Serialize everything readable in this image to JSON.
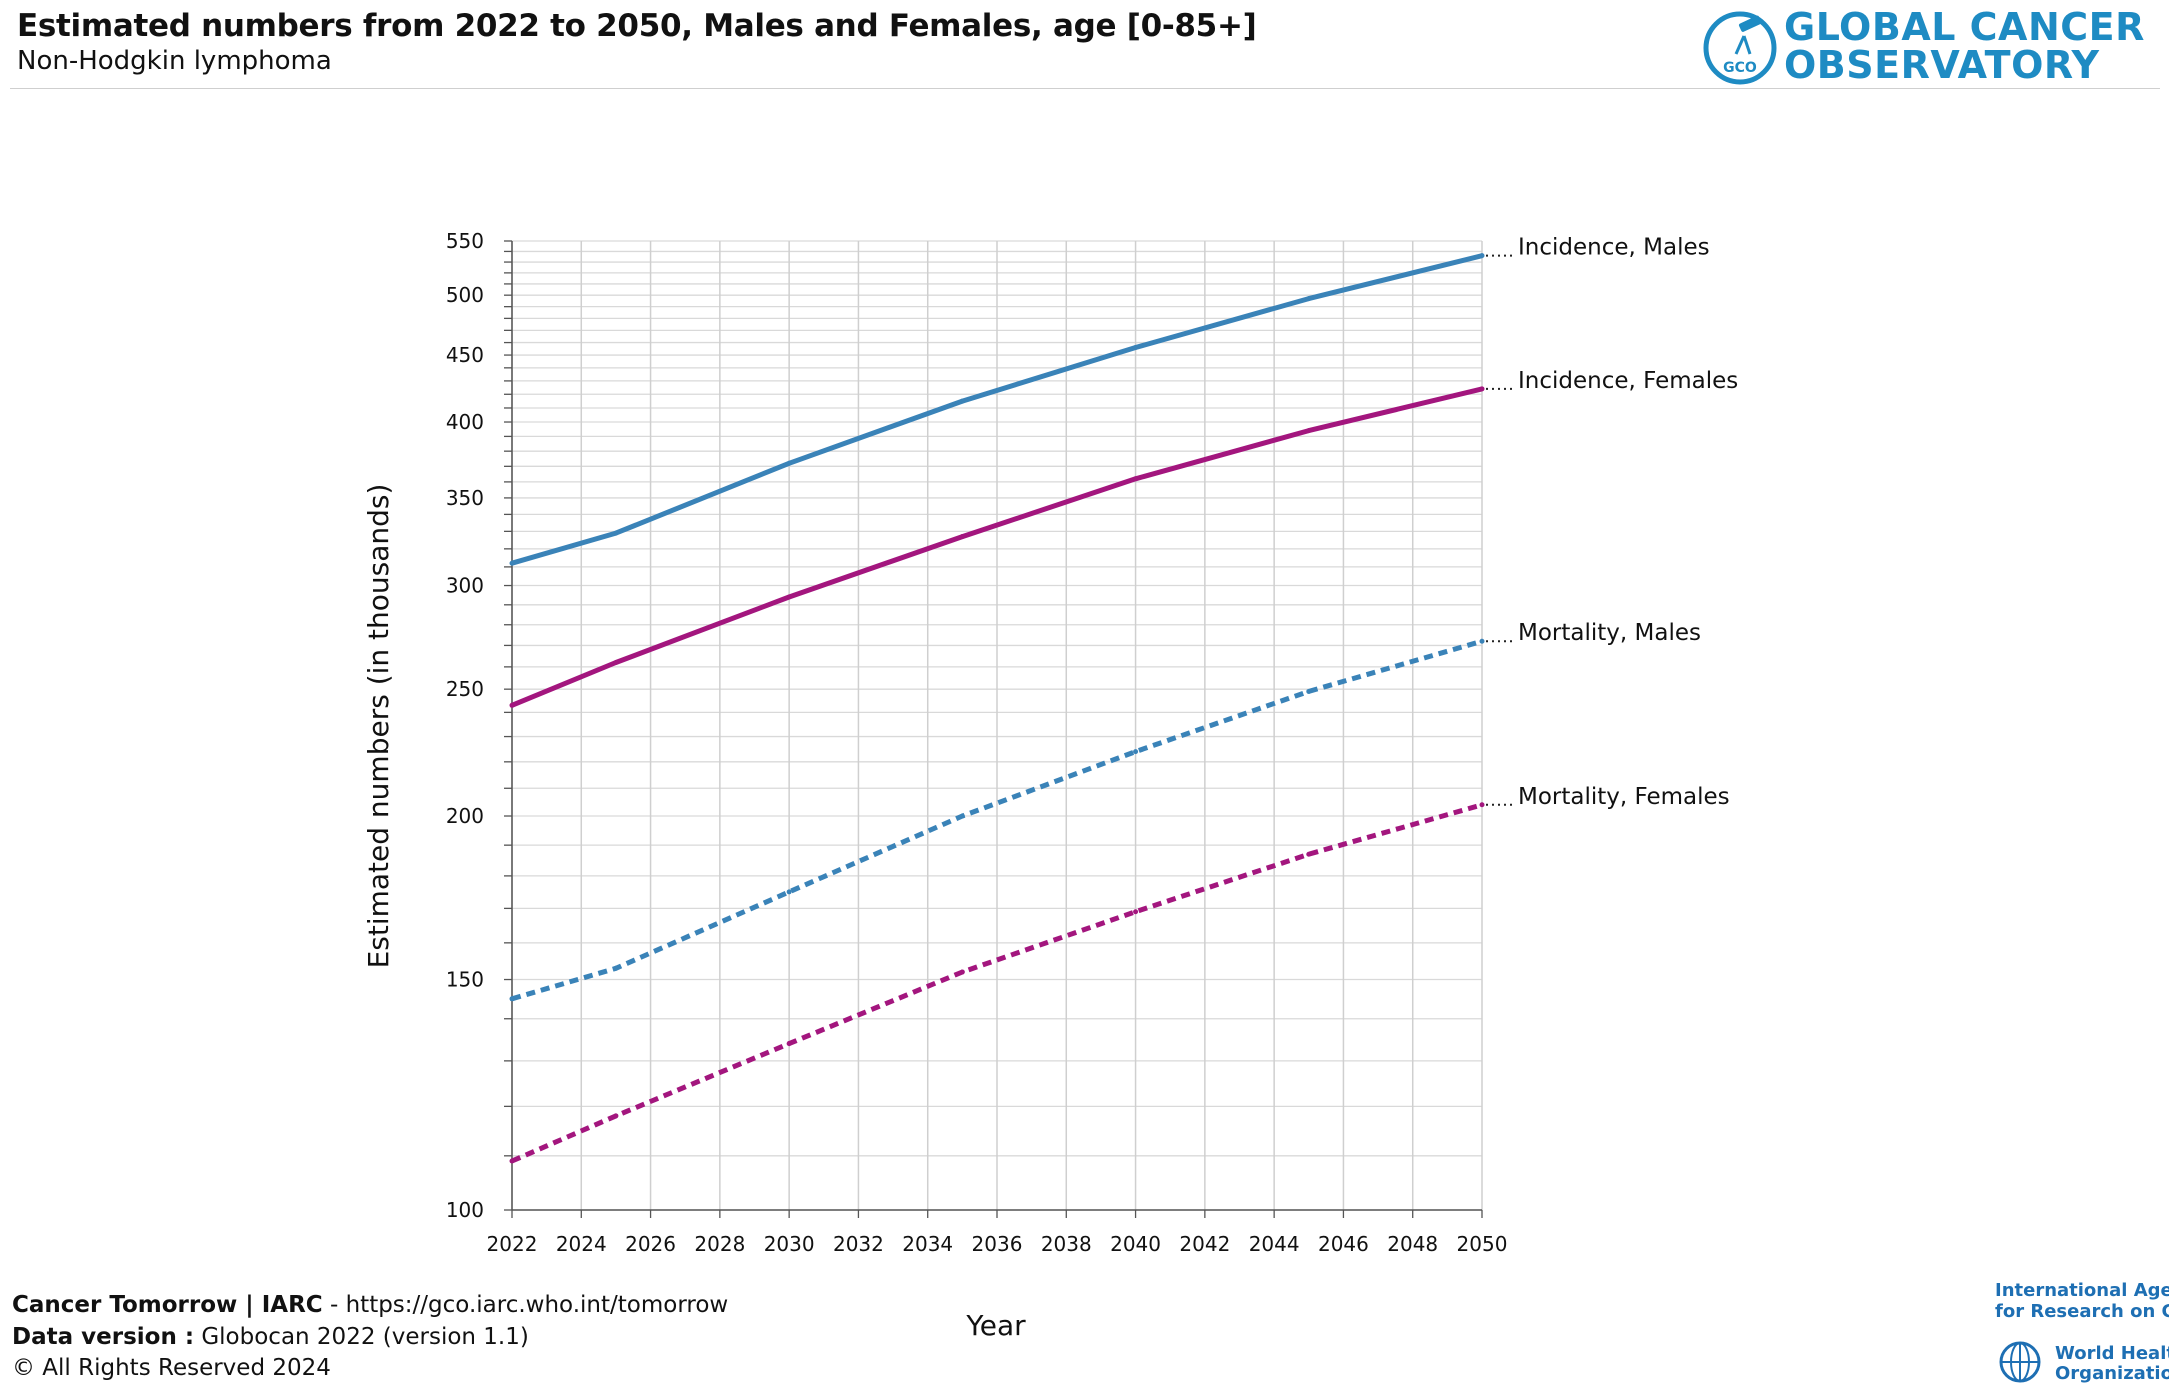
{
  "header": {
    "title": "Estimated numbers from 2022 to 2050, Males and Females, age [0-85+]",
    "subtitle": "Non-Hodgkin lymphoma",
    "logo_line1": "GLOBAL CANCER",
    "logo_line2": "OBSERVATORY",
    "logo_badge": "GCO"
  },
  "chart_data": {
    "type": "line",
    "title": "Estimated numbers from 2022 to 2050, Males and Females, age [0-85+]",
    "subtitle": "Non-Hodgkin lymphoma",
    "xlabel": "Year",
    "ylabel": "Estimated numbers (in thousands)",
    "yscale": "log",
    "xlim": [
      2022,
      2050
    ],
    "ylim": [
      100,
      550
    ],
    "x_ticks": [
      "2022",
      "2024",
      "2026",
      "2028",
      "2030",
      "2032",
      "2034",
      "2036",
      "2038",
      "2040",
      "2042",
      "2044",
      "2046",
      "2048",
      "2050"
    ],
    "y_ticks": [
      "100",
      "150",
      "200",
      "250",
      "300",
      "350",
      "400",
      "450",
      "500",
      "550"
    ],
    "grid": true,
    "x": [
      2022,
      2025,
      2030,
      2035,
      2040,
      2045,
      2050
    ],
    "series": [
      {
        "name": "Incidence, Males",
        "values": [
          312,
          329,
          372,
          415,
          456,
          497,
          536
        ],
        "style": "solid",
        "color": "#3a83b8"
      },
      {
        "name": "Incidence, Females",
        "values": [
          243,
          262,
          294,
          327,
          362,
          394,
          424
        ],
        "style": "solid",
        "color": "#a3167e"
      },
      {
        "name": "Mortality, Males",
        "values": [
          145,
          153,
          175,
          200,
          224,
          249,
          272
        ],
        "style": "dotted",
        "color": "#3a83b8"
      },
      {
        "name": "Mortality, Females",
        "values": [
          109,
          118,
          134,
          152,
          169,
          187,
          204
        ],
        "style": "dotted",
        "color": "#a3167e"
      }
    ]
  },
  "footer": {
    "source_bold": "Cancer Tomorrow | IARC",
    "source_rest": " - https://gco.iarc.who.int/tomorrow",
    "version_bold": "Data version :",
    "version_rest": " Globocan 2022 (version 1.1)",
    "rights": "© All Rights Reserved 2024",
    "iarc_line1": "International Agency",
    "iarc_line2": "for Research on Cancer",
    "who_line1": "World Health",
    "who_line2": "Organization"
  }
}
